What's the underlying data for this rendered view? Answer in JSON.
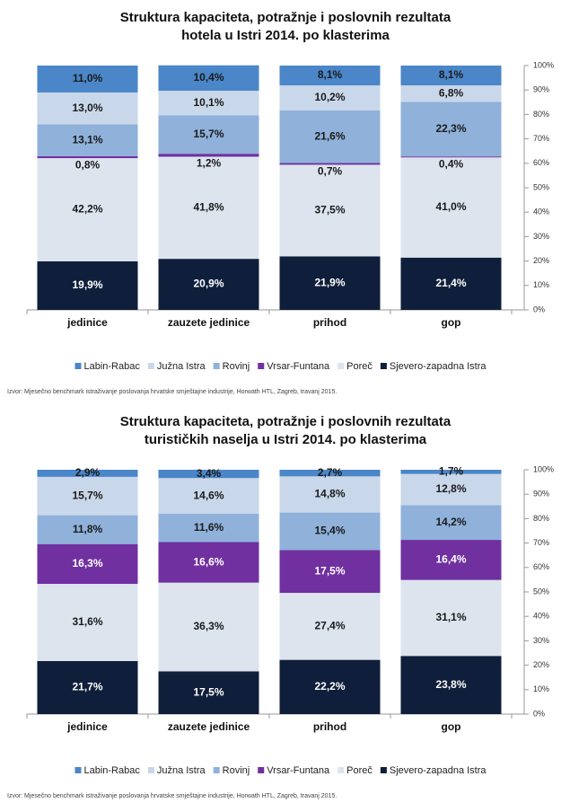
{
  "chart_data": [
    {
      "type": "stacked_bar",
      "title": [
        "Struktura kapaciteta, potražnje i poslovnih rezultata",
        "hotela u Istri 2014. po klasterima"
      ],
      "categories": [
        "jedinice",
        "zauzete jedinice",
        "prihod",
        "gop"
      ],
      "series": [
        {
          "name": "Labin-Rabac",
          "color": "#4a86c8",
          "values": [
            11.0,
            10.4,
            8.1,
            8.1
          ],
          "value_labels": [
            "11,0%",
            "10,4%",
            "8,1%",
            "8,1%"
          ]
        },
        {
          "name": "Južna Istra",
          "color": "#c9d7ea",
          "values": [
            13.0,
            10.1,
            10.2,
            6.8
          ],
          "value_labels": [
            "13,0%",
            "10,1%",
            "10,2%",
            "6,8%"
          ]
        },
        {
          "name": "Rovinj",
          "color": "#8fb1da",
          "values": [
            13.1,
            15.7,
            21.6,
            22.3
          ],
          "value_labels": [
            "13,1%",
            "15,7%",
            "21,6%",
            "22,3%"
          ]
        },
        {
          "name": "Vrsar-Funtana",
          "color": "#7030a0",
          "values": [
            0.8,
            1.2,
            0.7,
            0.4
          ],
          "value_labels": [
            "0,8%",
            "1,2%",
            "0,7%",
            "0,4%"
          ]
        },
        {
          "name": "Poreč",
          "color": "#dde4ee",
          "values": [
            42.2,
            41.8,
            37.5,
            41.0
          ],
          "value_labels": [
            "42,2%",
            "41,8%",
            "37,5%",
            "41,0%"
          ]
        },
        {
          "name": "Sjevero-zapadna Istra",
          "color": "#0f1e3a",
          "values": [
            19.9,
            20.9,
            21.9,
            21.4
          ],
          "value_labels": [
            "19,9%",
            "20,9%",
            "21,9%",
            "21,4%"
          ]
        }
      ],
      "ylim": [
        0,
        100
      ],
      "yticks": [
        {
          "value": 0,
          "label": "0%"
        },
        {
          "value": 10,
          "label": "10%"
        },
        {
          "value": 20,
          "label": "20%"
        },
        {
          "value": 30,
          "label": "30%"
        },
        {
          "value": 40,
          "label": "40%"
        },
        {
          "value": 50,
          "label": "50%"
        },
        {
          "value": 60,
          "label": "60%"
        },
        {
          "value": 70,
          "label": "70%"
        },
        {
          "value": 80,
          "label": "80%"
        },
        {
          "value": 90,
          "label": "90%"
        },
        {
          "value": 100,
          "label": "100%"
        }
      ],
      "legend": "bottom",
      "source": "Izvor: Mjesečno benchmark istraživanje poslovanja hrvatske smještajne industrije, Horwath HTL, Zagreb, travanj 2015."
    },
    {
      "type": "stacked_bar",
      "title": [
        "Struktura kapaciteta, potražnje i poslovnih rezultata",
        "turističkih naselja u Istri 2014. po klasterima"
      ],
      "categories": [
        "jedinice",
        "zauzete jedinice",
        "prihod",
        "gop"
      ],
      "series": [
        {
          "name": "Labin-Rabac",
          "color": "#4a86c8",
          "values": [
            2.9,
            3.4,
            2.7,
            1.7
          ],
          "value_labels": [
            "2,9%",
            "3,4%",
            "2,7%",
            "1,7%"
          ]
        },
        {
          "name": "Južna Istra",
          "color": "#c9d7ea",
          "values": [
            15.7,
            14.6,
            14.8,
            12.8
          ],
          "value_labels": [
            "15,7%",
            "14,6%",
            "14,8%",
            "12,8%"
          ]
        },
        {
          "name": "Rovinj",
          "color": "#8fb1da",
          "values": [
            11.8,
            11.6,
            15.4,
            14.2
          ],
          "value_labels": [
            "11,8%",
            "11,6%",
            "15,4%",
            "14,2%"
          ]
        },
        {
          "name": "Vrsar-Funtana",
          "color": "#7030a0",
          "values": [
            16.3,
            16.6,
            17.5,
            16.4
          ],
          "value_labels": [
            "16,3%",
            "16,6%",
            "17,5%",
            "16,4%"
          ]
        },
        {
          "name": "Poreč",
          "color": "#dde4ee",
          "values": [
            31.6,
            36.3,
            27.4,
            31.1
          ],
          "value_labels": [
            "31,6%",
            "36,3%",
            "27,4%",
            "31,1%"
          ]
        },
        {
          "name": "Sjevero-zapadna Istra",
          "color": "#0f1e3a",
          "values": [
            21.7,
            17.5,
            22.2,
            23.8
          ],
          "value_labels": [
            "21,7%",
            "17,5%",
            "22,2%",
            "23,8%"
          ]
        }
      ],
      "ylim": [
        0,
        100
      ],
      "yticks": [
        {
          "value": 0,
          "label": "0%"
        },
        {
          "value": 10,
          "label": "10%"
        },
        {
          "value": 20,
          "label": "20%"
        },
        {
          "value": 30,
          "label": "30%"
        },
        {
          "value": 40,
          "label": "40%"
        },
        {
          "value": 50,
          "label": "50%"
        },
        {
          "value": 60,
          "label": "60%"
        },
        {
          "value": 70,
          "label": "70%"
        },
        {
          "value": 80,
          "label": "80%"
        },
        {
          "value": 90,
          "label": "90%"
        },
        {
          "value": 100,
          "label": "100%"
        }
      ],
      "legend": "bottom",
      "source": "Izvor: Mjesečno benchmark istraživanje poslovanja hrvatske smještajne industrije, Horwath HTL, Zagreb, travanj 2015."
    }
  ]
}
